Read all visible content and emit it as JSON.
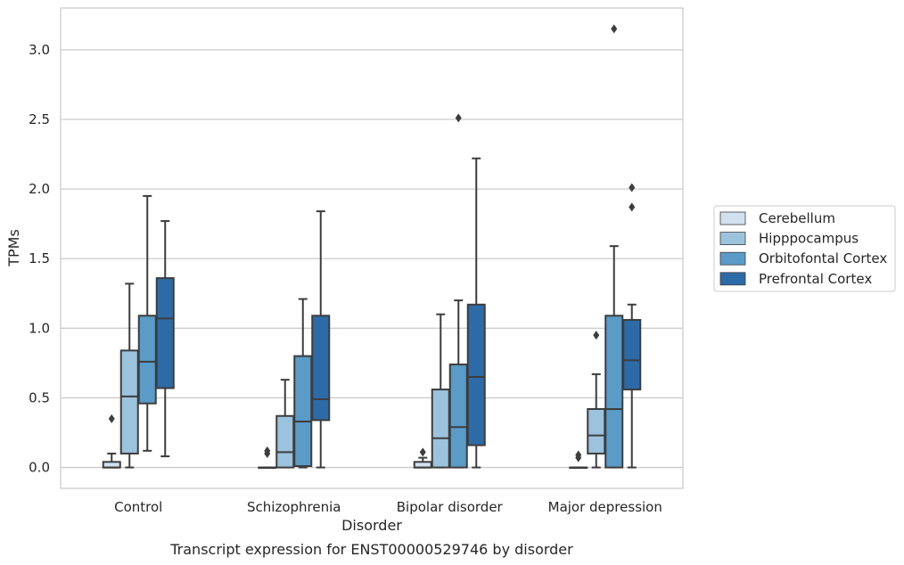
{
  "chart_data": {
    "type": "box",
    "caption": "Transcript expression for ENST00000529746 by disorder",
    "xlabel": "Disorder",
    "ylabel": "TPMs",
    "categories": [
      "Control",
      "Schizophrenia",
      "Bipolar disorder",
      "Major depression"
    ],
    "ylim": [
      -0.15,
      3.3
    ],
    "yticks": [
      "0.0",
      "0.5",
      "1.0",
      "1.5",
      "2.0",
      "2.5",
      "3.0"
    ],
    "grid": "horizontal",
    "legend_position": "right",
    "series": [
      {
        "name": "Cerebellum",
        "color": "#d1e1f0",
        "boxes": [
          {
            "whislo": 0.0,
            "q1": 0.0,
            "med": 0.0,
            "q3": 0.04,
            "whishi": 0.1,
            "fliers": [
              0.35
            ]
          },
          {
            "whislo": 0.0,
            "q1": 0.0,
            "med": 0.0,
            "q3": 0.0,
            "whishi": 0.0,
            "fliers": [
              0.1,
              0.12
            ]
          },
          {
            "whislo": 0.0,
            "q1": 0.0,
            "med": 0.0,
            "q3": 0.04,
            "whishi": 0.07,
            "fliers": [
              0.11
            ]
          },
          {
            "whislo": 0.0,
            "q1": 0.0,
            "med": 0.0,
            "q3": 0.0,
            "whishi": 0.0,
            "fliers": [
              0.07,
              0.09
            ]
          }
        ]
      },
      {
        "name": "Hipppocampus",
        "color": "#9cc3dd",
        "boxes": [
          {
            "whislo": 0.0,
            "q1": 0.1,
            "med": 0.51,
            "q3": 0.84,
            "whishi": 1.32,
            "fliers": []
          },
          {
            "whislo": 0.0,
            "q1": 0.0,
            "med": 0.11,
            "q3": 0.37,
            "whishi": 0.63,
            "fliers": []
          },
          {
            "whislo": 0.0,
            "q1": 0.0,
            "med": 0.21,
            "q3": 0.56,
            "whishi": 1.1,
            "fliers": []
          },
          {
            "whislo": 0.0,
            "q1": 0.1,
            "med": 0.23,
            "q3": 0.42,
            "whishi": 0.67,
            "fliers": [
              0.95
            ]
          }
        ]
      },
      {
        "name": "Orbitofontal Cortex",
        "color": "#5a9bc8",
        "boxes": [
          {
            "whislo": 0.12,
            "q1": 0.46,
            "med": 0.76,
            "q3": 1.09,
            "whishi": 1.95,
            "fliers": []
          },
          {
            "whislo": 0.0,
            "q1": 0.01,
            "med": 0.33,
            "q3": 0.8,
            "whishi": 1.21,
            "fliers": []
          },
          {
            "whislo": 0.0,
            "q1": 0.0,
            "med": 0.29,
            "q3": 0.74,
            "whishi": 1.2,
            "fliers": [
              2.51
            ]
          },
          {
            "whislo": 0.0,
            "q1": 0.0,
            "med": 0.42,
            "q3": 1.09,
            "whishi": 1.59,
            "fliers": [
              3.15
            ]
          }
        ]
      },
      {
        "name": "Prefrontal Cortex",
        "color": "#2d6ba8",
        "boxes": [
          {
            "whislo": 0.08,
            "q1": 0.57,
            "med": 1.07,
            "q3": 1.36,
            "whishi": 1.77,
            "fliers": []
          },
          {
            "whislo": 0.0,
            "q1": 0.34,
            "med": 0.49,
            "q3": 1.09,
            "whishi": 1.84,
            "fliers": []
          },
          {
            "whislo": 0.0,
            "q1": 0.16,
            "med": 0.65,
            "q3": 1.17,
            "whishi": 2.22,
            "fliers": []
          },
          {
            "whislo": 0.0,
            "q1": 0.56,
            "med": 0.77,
            "q3": 1.06,
            "whishi": 1.17,
            "fliers": [
              1.87,
              2.01
            ]
          }
        ]
      }
    ]
  }
}
